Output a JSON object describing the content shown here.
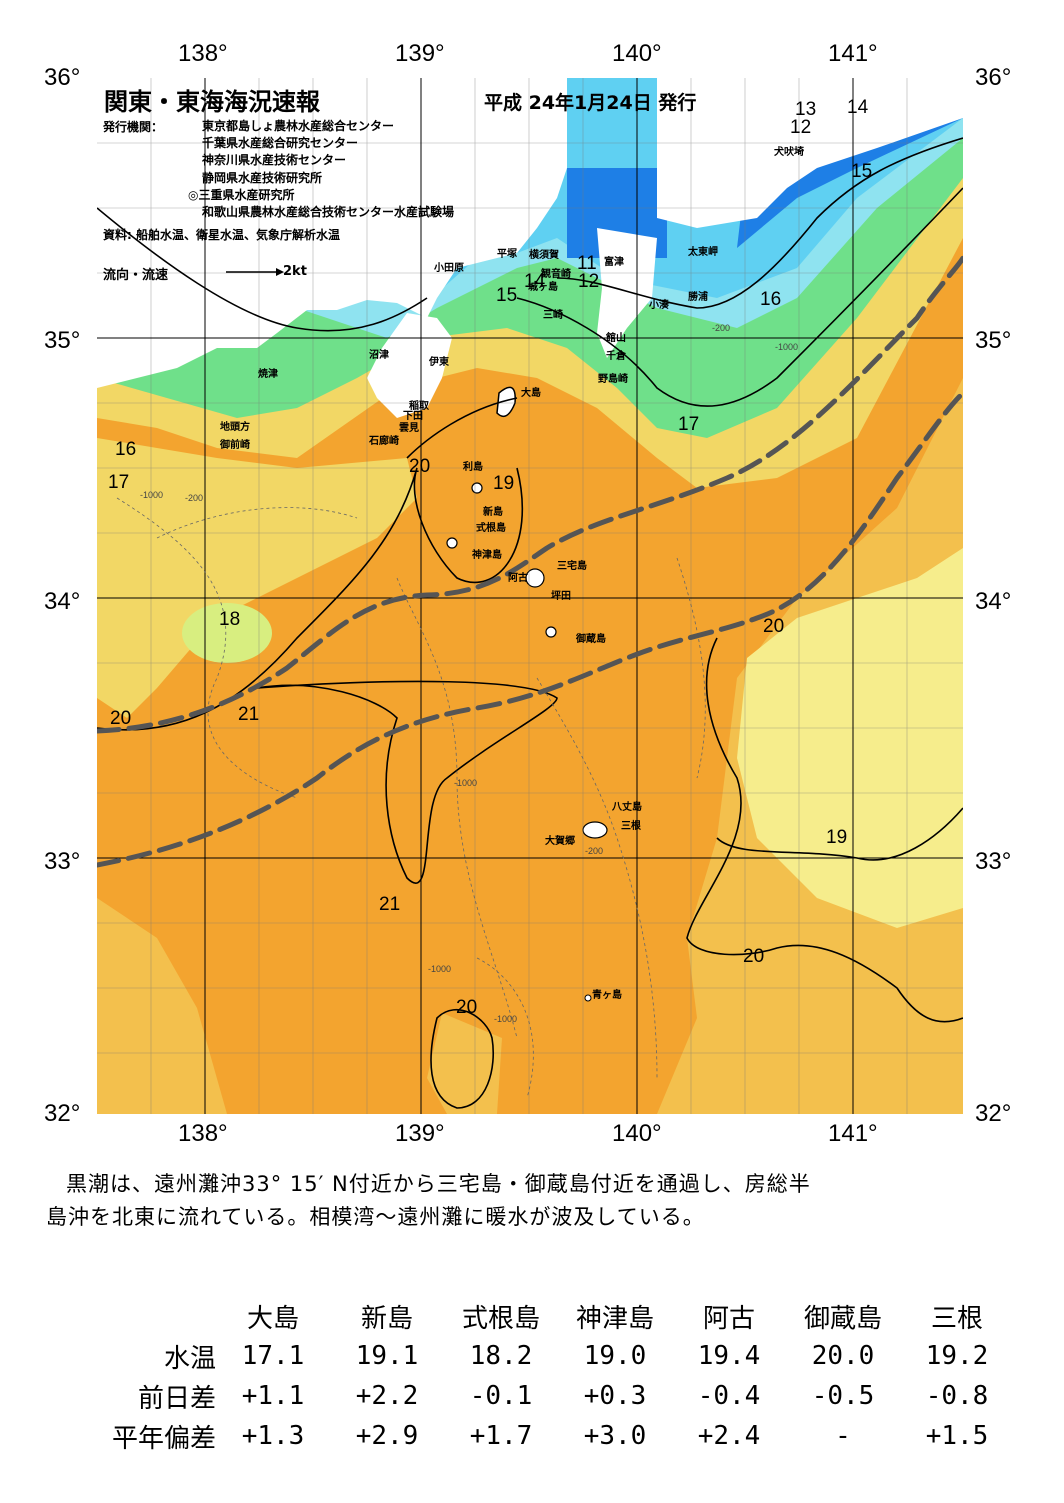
{
  "header": {
    "title": "関東・東海海況速報",
    "date": "平成 24年1月24日 発行",
    "publisher_label": "発行機関：",
    "publishers": [
      "東京都島しょ農林水産総合センター",
      "千葉県水産総合研究センター",
      "神奈川県水産技術センター",
      "静岡県水産技術研究所",
      "◎三重県水産研究所",
      "和歌山県農林水産総合技術センター水産試験場"
    ],
    "source": "資料: 船舶水温、衛星水温、気象庁解析水温",
    "flow_label": "流向・流速",
    "flow_unit": "2kt"
  },
  "axes": {
    "lon_top": [
      "138°",
      "139°",
      "140°",
      "141°"
    ],
    "lon_bottom": [
      "138°",
      "139°",
      "140°",
      "141°"
    ],
    "lat_left": [
      "36°",
      "35°",
      "34°",
      "33°",
      "32°"
    ],
    "lat_right": [
      "36°",
      "35°",
      "34°",
      "33°",
      "32°"
    ]
  },
  "places": [
    "犬吠埼",
    "太東岬",
    "富津",
    "勝浦",
    "小湊",
    "館山",
    "千倉",
    "野島崎",
    "横須賀",
    "観音崎",
    "城ヶ島",
    "三崎",
    "平塚",
    "小田原",
    "沼津",
    "伊東",
    "稲取",
    "下田",
    "雲見",
    "石廊崎",
    "焼津",
    "地頭方",
    "御前崎",
    "大島",
    "利島",
    "新島",
    "式根島",
    "神津島",
    "三宅島",
    "阿古",
    "坪田",
    "御蔵島",
    "八丈島",
    "三根",
    "大賀郷",
    "青ヶ島"
  ],
  "isotherms": [
    "13",
    "12",
    "14",
    "15",
    "16",
    "11",
    "12",
    "14",
    "15",
    "16",
    "17",
    "17",
    "20",
    "19",
    "18",
    "20",
    "21",
    "20",
    "19",
    "21",
    "20",
    "20"
  ],
  "depth_labels": [
    "-200",
    "-1000"
  ],
  "summary": [
    "黒潮は、遠州灘沖33° 15′ N付近から三宅島・御蔵島付近を通過し、房総半",
    "島沖を北東に流れている。相模湾～遠州灘に暖水が波及している。"
  ],
  "observations": {
    "columns": [
      "大島",
      "新島",
      "式根島",
      "神津島",
      "阿古",
      "御蔵島",
      "三根"
    ],
    "rows": [
      {
        "label": "水温",
        "values": [
          "17.1",
          "19.1",
          "18.2",
          "19.0",
          "19.4",
          "20.0",
          "19.2"
        ]
      },
      {
        "label": "前日差",
        "values": [
          "+1.1",
          "+2.2",
          "-0.1",
          "+0.3",
          "-0.4",
          "-0.5",
          "-0.8"
        ]
      },
      {
        "label": "平年偏差",
        "values": [
          "+1.3",
          "+2.9",
          "+1.7",
          "+3.0",
          "+2.4",
          "-",
          "+1.5"
        ]
      }
    ]
  },
  "colors": {
    "deep_blue": "#1e7fe6",
    "cyan": "#5fd0f2",
    "light_cyan": "#8fe3f0",
    "green": "#6fe08a",
    "yellow_green": "#d8ee80",
    "pale_yellow": "#f6ed8c",
    "yellow": "#f2d765",
    "light_orange": "#f3c04d",
    "orange": "#f3a42f",
    "kuroshio_line": "#555555"
  }
}
